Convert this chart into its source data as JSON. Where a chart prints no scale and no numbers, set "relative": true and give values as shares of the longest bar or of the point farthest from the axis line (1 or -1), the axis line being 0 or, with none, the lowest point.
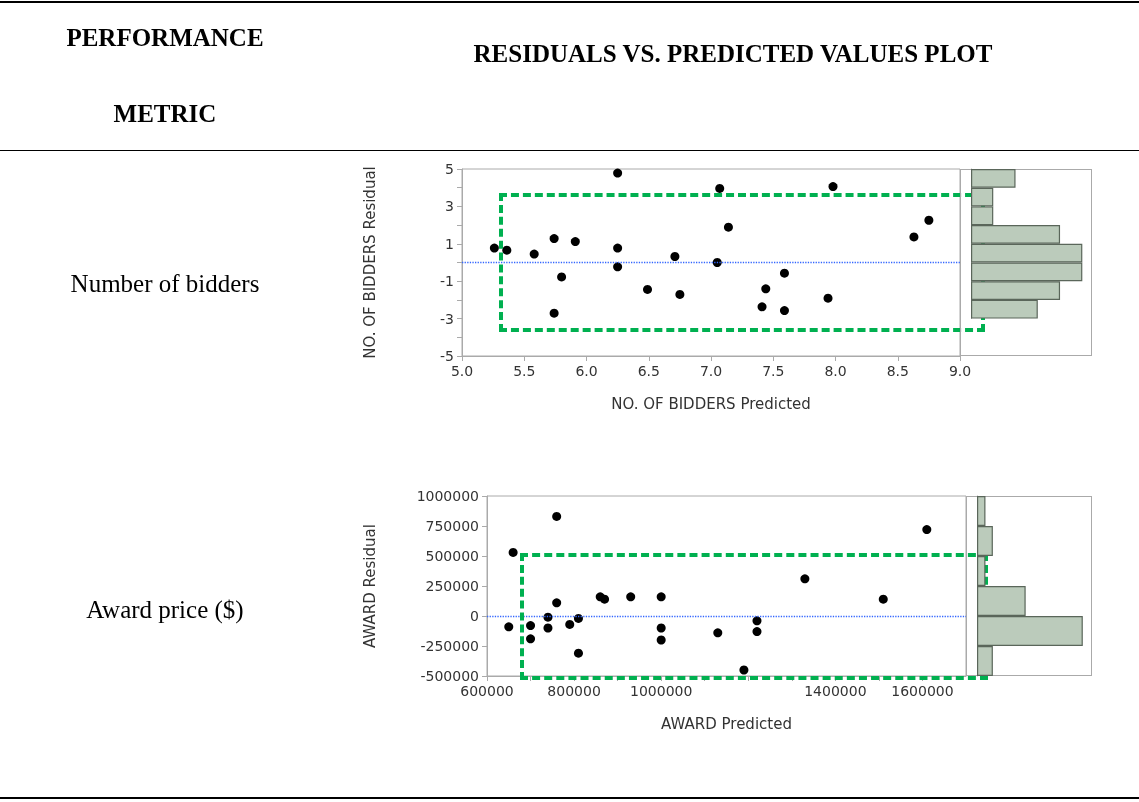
{
  "chart_data": [
    {
      "type": "scatter",
      "title": "RESIDUALS VS. PREDICTED VALUES PLOT",
      "annotations": [
        "PERFORMANCE METRIC",
        "Number of bidders"
      ],
      "xlabel": "NO. OF BIDDERS Predicted",
      "ylabel": "NO. OF BIDDERS Residual",
      "color": "#000000",
      "marker": "circle",
      "grid": false,
      "x": [
        5.26,
        5.36,
        5.58,
        5.74,
        5.74,
        5.8,
        5.91,
        6.25,
        6.25,
        6.25,
        6.49,
        6.71,
        6.75,
        7.05,
        7.07,
        7.14,
        7.41,
        7.44,
        7.59,
        7.59,
        7.94,
        7.98,
        8.63,
        8.75
      ],
      "values": [
        0.77,
        0.66,
        0.45,
        1.28,
        -2.71,
        -0.77,
        1.12,
        4.78,
        0.77,
        -0.23,
        -1.44,
        0.32,
        -1.71,
        0.0,
        3.96,
        1.89,
        -2.37,
        -1.41,
        -0.57,
        -2.57,
        -1.91,
        4.06,
        1.37,
        2.26
      ],
      "xlim": [
        5,
        9
      ],
      "xticks": [
        {
          "value": 5,
          "label": "5.0"
        },
        {
          "value": 5.5,
          "label": "5.5"
        },
        {
          "value": 6,
          "label": "6.0"
        },
        {
          "value": 6.5,
          "label": "6.5"
        },
        {
          "value": 7,
          "label": "7.0"
        },
        {
          "value": 7.5,
          "label": "7.5"
        },
        {
          "value": 8,
          "label": "8.0"
        },
        {
          "value": 8.5,
          "label": "8.5"
        },
        {
          "value": 9,
          "label": "9.0"
        }
      ],
      "ylim": [
        -5,
        5
      ],
      "yticks": [
        5,
        {
          "value": 4,
          "label": null
        },
        3,
        {
          "value": 2,
          "label": null
        },
        1,
        {
          "value": 0,
          "label": null
        },
        -1,
        {
          "value": -2,
          "label": null
        },
        -3,
        {
          "value": -4,
          "label": null
        },
        -5
      ],
      "ref_lines": [
        {
          "axis": "y",
          "value": 0,
          "color": "#3366ff",
          "line_style": "dotted"
        }
      ]
    },
    {
      "type": "bar",
      "orientation": "horizontal",
      "relative": true,
      "color": "#bbcbbb",
      "categories": [
        null,
        null,
        null,
        null,
        null,
        null,
        null,
        null
      ],
      "values": [
        0.4,
        0.2,
        0.2,
        0.8,
        1,
        1,
        0.8,
        0.6
      ]
    },
    {
      "type": "scatter",
      "annotations": [
        "Award price ($)"
      ],
      "xlabel": "AWARD Predicted",
      "ylabel": "AWARD Residual",
      "color": "#000000",
      "marker": "circle",
      "grid": false,
      "x": [
        650000,
        660000,
        700000,
        700000,
        740000,
        740000,
        760000,
        760000,
        790000,
        810000,
        810000,
        860000,
        870000,
        930000,
        1000000,
        1000000,
        1000000,
        1130000,
        1190000,
        1220000,
        1220000,
        1330000,
        1510000,
        1610000
      ],
      "values": [
        -90000,
        530000,
        -190000,
        -80000,
        -10000,
        -100000,
        830000,
        110000,
        -70000,
        -310000,
        -20000,
        160000,
        140000,
        160000,
        160000,
        -100000,
        -200000,
        -140000,
        -450000,
        -40000,
        -130000,
        310000,
        140000,
        720000
      ],
      "xlim": [
        600000,
        1700000
      ],
      "xticks": [
        600000,
        {
          "value": 700000,
          "label": null
        },
        800000,
        {
          "value": 900000,
          "label": null
        },
        1000000,
        {
          "value": 1100000,
          "label": null
        },
        {
          "value": 1200000,
          "label": null
        },
        {
          "value": 1300000,
          "label": null
        },
        1400000,
        {
          "value": 1500000,
          "label": null
        },
        1600000
      ],
      "ylim": [
        -500000,
        1000000
      ],
      "yticks": [
        -500000,
        -250000,
        0,
        250000,
        500000,
        750000,
        1000000
      ],
      "ref_lines": [
        {
          "axis": "y",
          "value": 0,
          "color": "#3366ff",
          "line_style": "dotted"
        }
      ]
    },
    {
      "type": "bar",
      "orientation": "horizontal",
      "relative": true,
      "color": "#bbcbbb",
      "categories": [
        null,
        null,
        null,
        null,
        null,
        null
      ],
      "values": [
        0.08,
        0.15,
        0.08,
        0.46,
        1,
        0.15
      ]
    }
  ]
}
